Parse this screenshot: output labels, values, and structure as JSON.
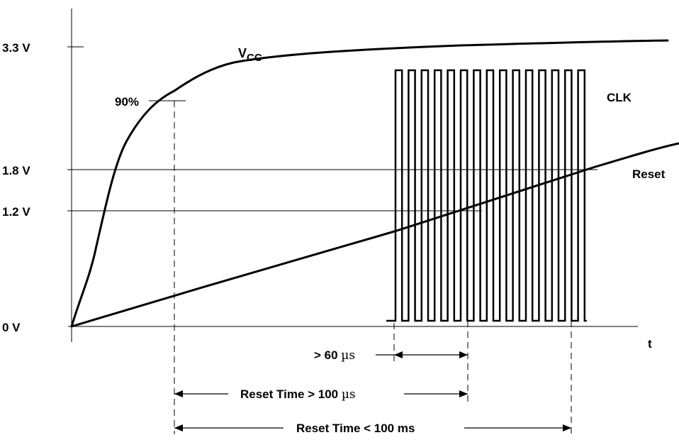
{
  "y_labels": {
    "v33": "3.3 V",
    "v18": "1.8 V",
    "v12": "1.2 V",
    "v0": "0 V"
  },
  "percent_label": "90%",
  "signals": {
    "vcc_main": "V",
    "vcc_sub": "CC",
    "clk": "CLK",
    "reset": "Reset"
  },
  "x_axis_label": "t",
  "annotations": {
    "min_clk_prefix": "> 60 ",
    "min_clk_unit": "µs",
    "reset_min_prefix": "Reset Time > 100 ",
    "reset_min_unit": "µs",
    "reset_max": "Reset Time < 100 ms"
  }
}
